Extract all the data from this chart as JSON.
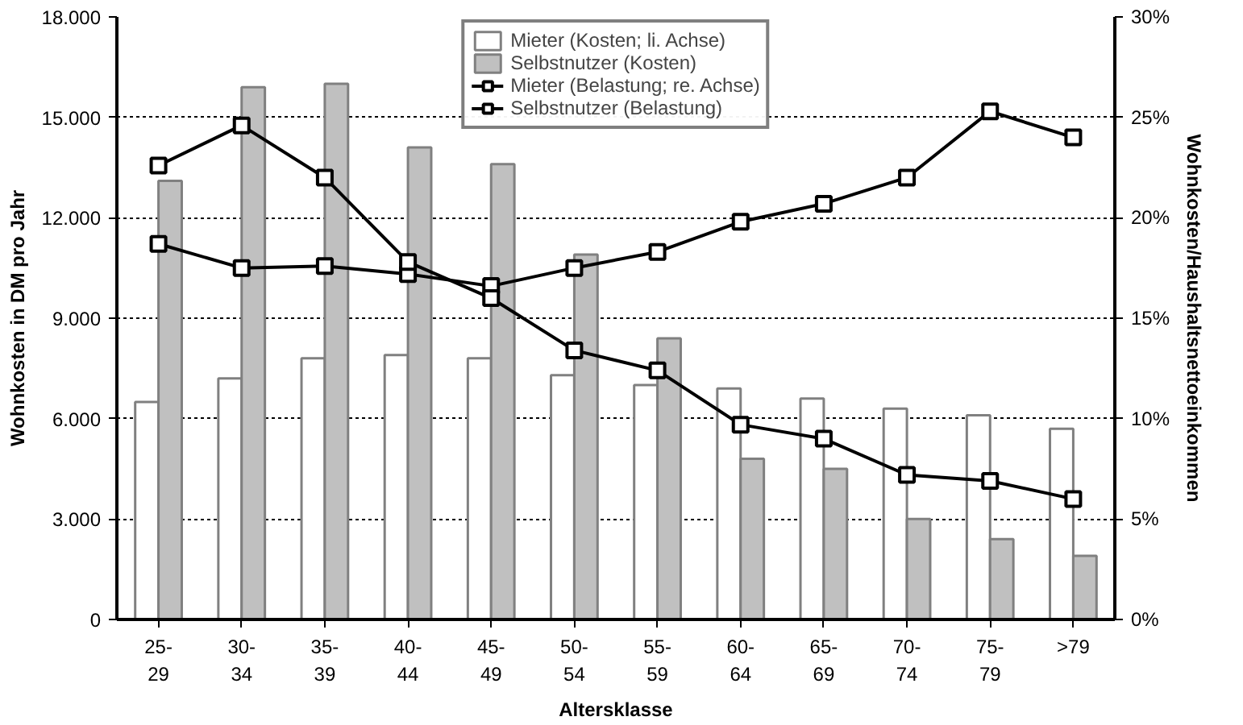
{
  "chart_data": {
    "type": "bar",
    "xlabel": "Altersklasse",
    "ylabel": "Wohnkosten in DM pro Jahr",
    "y2label": "Wohnkosten/Haushaltsnettoeinkommen",
    "categories": [
      "25-\n29",
      "30-\n34",
      "35-\n39",
      "40-\n44",
      "45-\n49",
      "50-\n54",
      "55-\n59",
      "60-\n64",
      "65-\n69",
      "70-\n74",
      "75-\n79",
      ">79"
    ],
    "series": [
      {
        "name": "Mieter (Kosten; li. Achse)",
        "color": "#ffffff",
        "values": [
          6500,
          7200,
          7800,
          7900,
          7800,
          7300,
          7000,
          6900,
          6600,
          6300,
          6100,
          5700
        ]
      },
      {
        "name": "Selbstnutzer (Kosten)",
        "color": "#c0c0c0",
        "values": [
          13100,
          15900,
          16000,
          14100,
          13600,
          10900,
          8400,
          4800,
          4500,
          3000,
          2400,
          1900
        ]
      },
      {
        "name": "Mieter (Belastung; re. Achse)",
        "type": "line",
        "axis": "y2",
        "color": "#000000",
        "marker": "square",
        "values": [
          18.7,
          17.5,
          17.6,
          17.2,
          16.6,
          17.5,
          18.3,
          19.8,
          20.7,
          22.0,
          25.3,
          24.0
        ]
      },
      {
        "name": "Selbstnutzer (Belastung)",
        "type": "line",
        "axis": "y2",
        "color": "#000000",
        "marker": "square",
        "values": [
          22.6,
          24.6,
          22.0,
          17.8,
          16.0,
          13.4,
          12.4,
          9.7,
          9.0,
          7.2,
          6.9,
          6.0
        ]
      }
    ],
    "ylim": [
      0,
      18000
    ],
    "yticks": [
      0,
      {
        "value": 3000,
        "label": "3.000"
      },
      {
        "value": 6000,
        "label": "6.000"
      },
      {
        "value": 9000,
        "label": "9.000"
      },
      {
        "value": 12000,
        "label": "12.000"
      },
      {
        "value": 15000,
        "label": "15.000"
      },
      {
        "value": 18000,
        "label": "18.000"
      }
    ],
    "y2lim": [
      0,
      30
    ],
    "y2ticks": [
      {
        "value": 0,
        "label": "0%"
      },
      {
        "value": 5,
        "label": "5%"
      },
      {
        "value": 10,
        "label": "10%"
      },
      {
        "value": 15,
        "label": "15%"
      },
      {
        "value": 20,
        "label": "20%"
      },
      {
        "value": 25,
        "label": "25%"
      },
      {
        "value": 30,
        "label": "30%"
      }
    ],
    "grid": "y",
    "legend": "top",
    "line_style": "solid"
  }
}
